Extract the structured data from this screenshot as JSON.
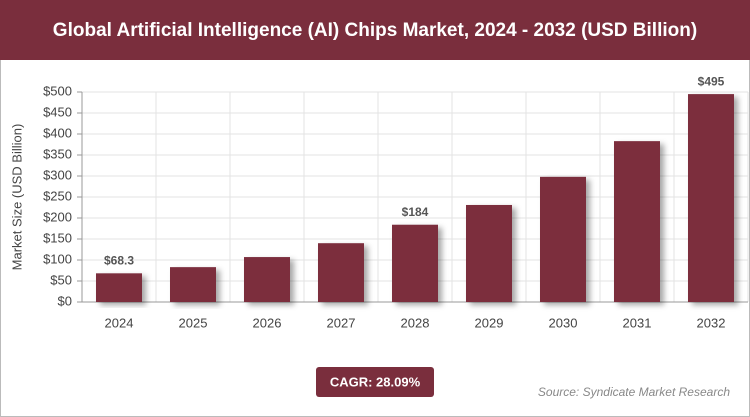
{
  "chart_data": {
    "type": "bar",
    "title": "Global Artificial Intelligence (AI) Chips Market, 2024 - 2032 (USD Billion)",
    "y_label": "Market Size (USD Billion)",
    "categories": [
      "2024",
      "2025",
      "2026",
      "2027",
      "2028",
      "2029",
      "2030",
      "2031",
      "2032"
    ],
    "values": [
      68.3,
      83,
      107,
      140,
      184,
      231,
      298,
      383,
      495
    ],
    "value_labels": [
      "$68.3",
      null,
      null,
      null,
      "$184",
      null,
      null,
      null,
      "$495"
    ],
    "color": "#7b2e3e",
    "ylim": [
      0,
      500
    ],
    "yticks": [
      {
        "value": 0,
        "label": "$0"
      },
      {
        "value": 50,
        "label": "$50"
      },
      {
        "value": 100,
        "label": "$100"
      },
      {
        "value": 150,
        "label": "$150"
      },
      {
        "value": 200,
        "label": "$200"
      },
      {
        "value": 250,
        "label": "$250"
      },
      {
        "value": 300,
        "label": "$300"
      },
      {
        "value": 350,
        "label": "$350"
      },
      {
        "value": 400,
        "label": "$400"
      },
      {
        "value": 450,
        "label": "$450"
      },
      {
        "value": 500,
        "label": "$500"
      }
    ],
    "grid": true,
    "cagr": "CAGR: 28.09%",
    "source": "Source: Syndicate Market Research"
  }
}
